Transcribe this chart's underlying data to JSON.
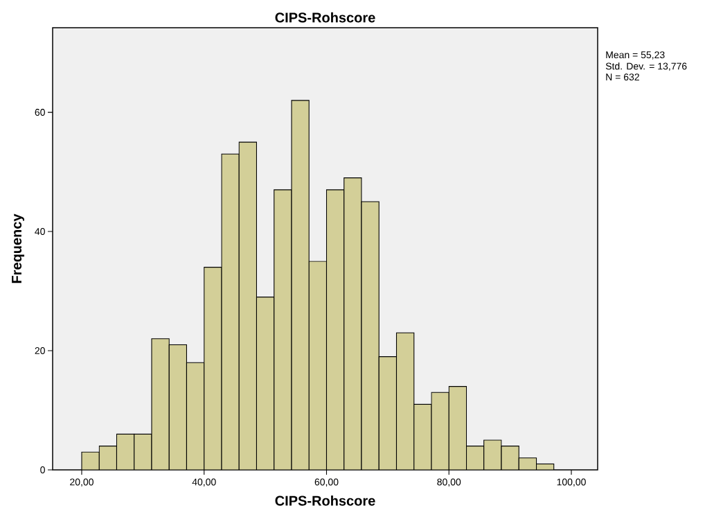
{
  "chart_data": {
    "type": "histogram",
    "title": "CIPS-Rohscore",
    "xlabel": "CIPS-Rohscore",
    "ylabel": "Frequency",
    "bins": [
      20,
      22.86,
      25.71,
      28.57,
      31.43,
      34.29,
      37.14,
      40,
      42.86,
      45.71,
      48.57,
      51.43,
      54.29,
      57.14,
      60,
      62.86,
      65.71,
      68.57,
      71.43,
      74.29,
      77.14,
      80,
      82.86,
      85.71,
      88.57,
      91.43,
      94.29,
      97.14
    ],
    "values": [
      3,
      4,
      6,
      6,
      22,
      21,
      18,
      34,
      53,
      55,
      29,
      47,
      62,
      35,
      47,
      49,
      45,
      19,
      23,
      11,
      13,
      14,
      4,
      5,
      4,
      2,
      1
    ],
    "color": "#d3cf98",
    "xlim": [
      15.25,
      104.3
    ],
    "ylim": [
      0,
      74.2
    ],
    "xticks": [
      {
        "value": 20,
        "label": "20,00"
      },
      {
        "value": 40,
        "label": "40,00"
      },
      {
        "value": 60,
        "label": "60,00"
      },
      {
        "value": 80,
        "label": "80,00"
      },
      {
        "value": 100,
        "label": "100,00"
      }
    ],
    "yticks": [
      0,
      20,
      40,
      60
    ],
    "annotations": [
      "Mean = 55,23",
      "Std. Dev. = 13,776",
      "N = 632"
    ]
  }
}
